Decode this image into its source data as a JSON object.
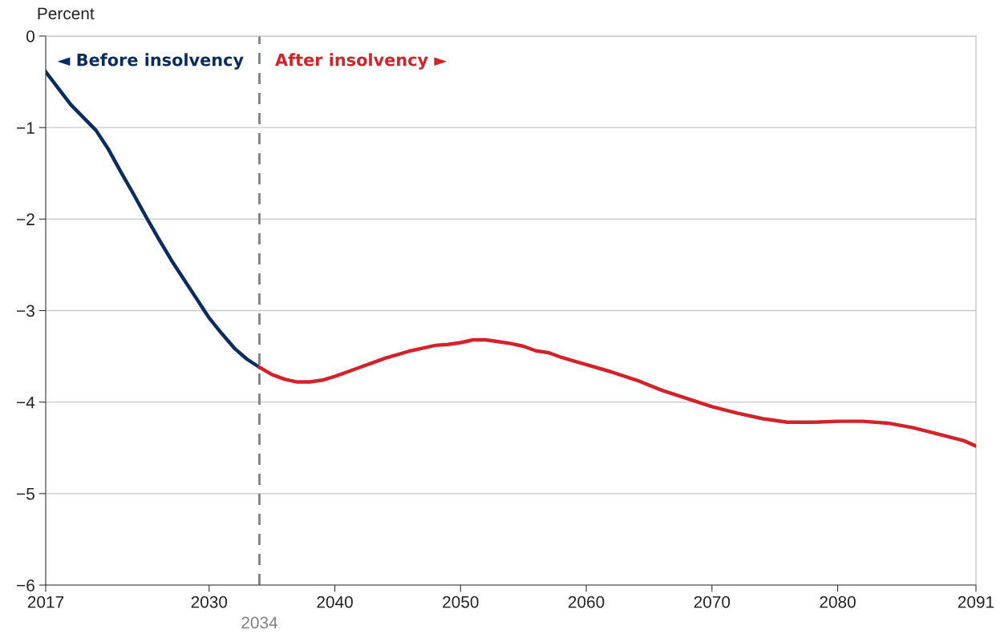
{
  "chart_data": {
    "type": "line",
    "ylabel": "Percent",
    "xlim": [
      2017,
      2091
    ],
    "xticks": [
      2017,
      2030,
      2040,
      2050,
      2060,
      2070,
      2080,
      2091
    ],
    "ylim": [
      -6,
      0
    ],
    "yticks": [
      -6,
      -5,
      -4,
      -3,
      -2,
      -1,
      0
    ],
    "grid": "y",
    "legend": false,
    "marker": "none",
    "line_style": "solid",
    "series": [
      {
        "name": "◄ Before insolvency",
        "color": "#0b2d5e",
        "x": [
          2017,
          2018,
          2019,
          2020,
          2021,
          2022,
          2023,
          2024,
          2025,
          2026,
          2027,
          2028,
          2029,
          2030,
          2031,
          2032,
          2033,
          2034
        ],
        "values": [
          -0.39,
          -0.57,
          -0.75,
          -0.89,
          -1.03,
          -1.24,
          -1.49,
          -1.73,
          -1.98,
          -2.22,
          -2.45,
          -2.66,
          -2.87,
          -3.08,
          -3.25,
          -3.41,
          -3.53,
          -3.62
        ]
      },
      {
        "name": "After insolvency ►",
        "color": "#d2232a",
        "x": [
          2034,
          2035,
          2036,
          2037,
          2038,
          2039,
          2040,
          2041,
          2042,
          2043,
          2044,
          2045,
          2046,
          2047,
          2048,
          2049,
          2050,
          2051,
          2052,
          2053,
          2054,
          2055,
          2056,
          2057,
          2058,
          2059,
          2060,
          2062,
          2064,
          2066,
          2068,
          2070,
          2072,
          2074,
          2076,
          2078,
          2080,
          2082,
          2084,
          2086,
          2088,
          2090,
          2091
        ],
        "values": [
          -3.62,
          -3.7,
          -3.75,
          -3.78,
          -3.78,
          -3.76,
          -3.72,
          -3.67,
          -3.62,
          -3.57,
          -3.52,
          -3.48,
          -3.44,
          -3.41,
          -3.38,
          -3.37,
          -3.35,
          -3.32,
          -3.32,
          -3.34,
          -3.36,
          -3.39,
          -3.44,
          -3.46,
          -3.51,
          -3.55,
          -3.59,
          -3.67,
          -3.76,
          -3.87,
          -3.96,
          -4.05,
          -4.12,
          -4.18,
          -4.22,
          -4.22,
          -4.21,
          -4.21,
          -4.23,
          -4.28,
          -4.35,
          -4.42,
          -4.48
        ]
      }
    ],
    "ref_lines": [
      {
        "axis": "x",
        "value": 2034,
        "label": "2034",
        "color": "#808080",
        "line_style": "dashed"
      }
    ]
  }
}
